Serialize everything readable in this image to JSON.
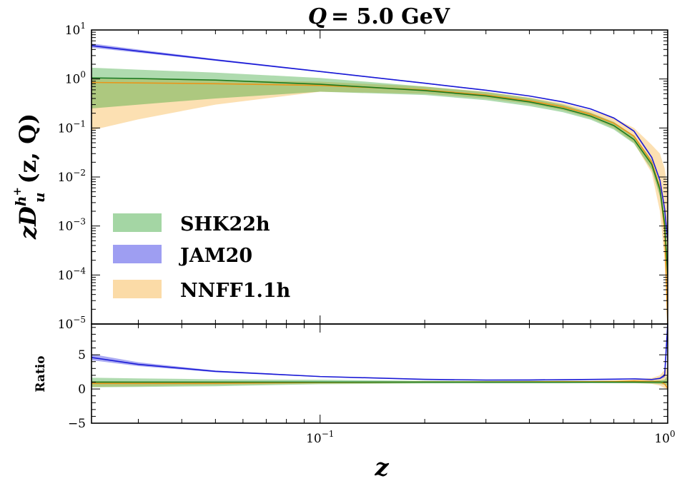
{
  "chart_data": {
    "type": "line",
    "title": "Q = 5.0 GeV",
    "title_parts": {
      "lhs": "Q",
      "rhs": "= 5.0 GeV"
    },
    "xlabel": "z",
    "ylabel": "zD_u^{h+}(z, Q)",
    "ylabel_parts": {
      "pre": "zD",
      "sub": "u",
      "sup_main": "h",
      "sup_sign": "+",
      "post": "(z, Q)"
    },
    "x_scale": "log",
    "xlim": [
      0.022,
      1.0
    ],
    "x_ticks": [
      {
        "value": 0.1,
        "base": "10",
        "exp": "−1"
      },
      {
        "value": 1.0,
        "base": "10",
        "exp": "0"
      }
    ],
    "colors": {
      "SHK22h": "#2ca02c",
      "JAM20": "#1f1fe0",
      "NNFF1.1h": "#f5a623"
    },
    "panels": [
      {
        "name": "main",
        "y_scale": "log",
        "ylim": [
          1e-05,
          10
        ],
        "y_ticks": [
          {
            "value": 10,
            "base": "10",
            "exp": "1"
          },
          {
            "value": 1,
            "base": "10",
            "exp": "0"
          },
          {
            "value": 0.1,
            "base": "10",
            "exp": "−1"
          },
          {
            "value": 0.01,
            "base": "10",
            "exp": "−2"
          },
          {
            "value": 0.001,
            "base": "10",
            "exp": "−3"
          },
          {
            "value": 0.0001,
            "base": "10",
            "exp": "−4"
          },
          {
            "value": 1e-05,
            "base": "10",
            "exp": "−5"
          }
        ]
      },
      {
        "name": "ratio",
        "ylabel": "Ratio",
        "y_scale": "linear",
        "ylim": [
          -5,
          9.5
        ],
        "y_ticks": [
          {
            "value": 5,
            "label": "5"
          },
          {
            "value": 0,
            "label": "0"
          },
          {
            "value": -5,
            "label": "−5"
          }
        ]
      }
    ],
    "series": [
      {
        "name": "SHK22h",
        "color": "#2ca02c",
        "x": [
          0.022,
          0.03,
          0.05,
          0.1,
          0.2,
          0.3,
          0.4,
          0.5,
          0.6,
          0.7,
          0.8,
          0.9,
          0.95,
          0.98,
          1.0
        ],
        "central": [
          1.05,
          1.02,
          0.95,
          0.78,
          0.58,
          0.45,
          0.34,
          0.25,
          0.175,
          0.112,
          0.058,
          0.018,
          0.0055,
          0.0011,
          0.0001
        ],
        "lower": [
          0.25,
          0.3,
          0.4,
          0.55,
          0.47,
          0.37,
          0.28,
          0.21,
          0.148,
          0.093,
          0.048,
          0.014,
          0.004,
          0.0007,
          5e-05
        ],
        "upper": [
          1.7,
          1.55,
          1.35,
          1.05,
          0.7,
          0.54,
          0.41,
          0.3,
          0.205,
          0.133,
          0.07,
          0.022,
          0.007,
          0.0015,
          0.0002
        ],
        "ratio_central": [
          1.0,
          1.0,
          1.0,
          1.0,
          1.0,
          1.0,
          1.0,
          1.0,
          1.0,
          1.0,
          1.0,
          1.0,
          1.0,
          1.0,
          1.0
        ],
        "ratio_lower": [
          0.25,
          0.3,
          0.4,
          0.7,
          0.8,
          0.82,
          0.82,
          0.82,
          0.84,
          0.83,
          0.83,
          0.78,
          0.73,
          0.64,
          0.5
        ],
        "ratio_upper": [
          1.65,
          1.55,
          1.42,
          1.35,
          1.2,
          1.2,
          1.2,
          1.2,
          1.17,
          1.19,
          1.2,
          1.22,
          1.27,
          1.36,
          2.0
        ]
      },
      {
        "name": "JAM20",
        "color": "#1f1fe0",
        "x": [
          0.022,
          0.03,
          0.05,
          0.1,
          0.2,
          0.3,
          0.4,
          0.5,
          0.6,
          0.7,
          0.8,
          0.9,
          0.95,
          0.98,
          1.0
        ],
        "central": [
          4.8,
          3.7,
          2.45,
          1.42,
          0.82,
          0.59,
          0.45,
          0.34,
          0.245,
          0.16,
          0.086,
          0.025,
          0.0085,
          0.0022,
          0.0005
        ],
        "lower": [
          4.35,
          3.45,
          2.35,
          1.38,
          0.8,
          0.575,
          0.44,
          0.333,
          0.24,
          0.156,
          0.083,
          0.024,
          0.008,
          0.0019,
          0.0004
        ],
        "upper": [
          5.3,
          4.0,
          2.55,
          1.46,
          0.84,
          0.605,
          0.46,
          0.347,
          0.25,
          0.164,
          0.089,
          0.026,
          0.009,
          0.0025,
          0.0006
        ],
        "ratio_central": [
          4.6,
          3.6,
          2.58,
          1.82,
          1.41,
          1.31,
          1.32,
          1.36,
          1.4,
          1.43,
          1.48,
          1.39,
          1.55,
          2.0,
          9.5
        ],
        "ratio_lower": [
          4.2,
          3.35,
          2.45,
          1.76,
          1.37,
          1.27,
          1.29,
          1.33,
          1.37,
          1.39,
          1.43,
          1.33,
          1.45,
          1.7,
          8.5
        ],
        "ratio_upper": [
          5.1,
          3.9,
          2.7,
          1.88,
          1.45,
          1.35,
          1.35,
          1.39,
          1.43,
          1.47,
          1.53,
          1.45,
          1.65,
          2.3,
          9.5
        ]
      },
      {
        "name": "NNFF1.1h",
        "color": "#f5a623",
        "x": [
          0.022,
          0.03,
          0.05,
          0.1,
          0.2,
          0.3,
          0.4,
          0.5,
          0.6,
          0.7,
          0.8,
          0.9,
          0.95,
          0.98,
          1.0
        ],
        "central": [
          0.85,
          0.83,
          0.8,
          0.74,
          0.6,
          0.47,
          0.36,
          0.27,
          0.19,
          0.125,
          0.068,
          0.02,
          0.006,
          0.0008,
          1e-05
        ],
        "lower": [
          0.09,
          0.15,
          0.3,
          0.55,
          0.5,
          0.4,
          0.31,
          0.23,
          0.16,
          0.1,
          0.05,
          0.012,
          0.002,
          0.0002,
          1e-05
        ],
        "upper": [
          1.0,
          0.98,
          0.95,
          0.88,
          0.7,
          0.55,
          0.42,
          0.32,
          0.23,
          0.16,
          0.1,
          0.045,
          0.03,
          0.015,
          0.005
        ],
        "ratio_central": [
          0.81,
          0.81,
          0.84,
          0.95,
          1.03,
          1.04,
          1.06,
          1.08,
          1.09,
          1.12,
          1.17,
          1.11,
          1.09,
          0.73,
          0.1
        ],
        "ratio_lower": [
          0.3,
          0.4,
          0.6,
          0.8,
          0.9,
          0.92,
          0.93,
          0.94,
          0.95,
          0.95,
          0.9,
          0.75,
          0.5,
          0.1,
          0.0
        ],
        "ratio_upper": [
          1.15,
          1.1,
          1.05,
          1.05,
          1.1,
          1.1,
          1.12,
          1.14,
          1.16,
          1.2,
          1.35,
          1.6,
          2.0,
          2.8,
          3.0
        ]
      }
    ],
    "legend": {
      "placement": "center-left",
      "entries": [
        "SHK22h",
        "JAM20",
        "NNFF1.1h"
      ]
    }
  }
}
